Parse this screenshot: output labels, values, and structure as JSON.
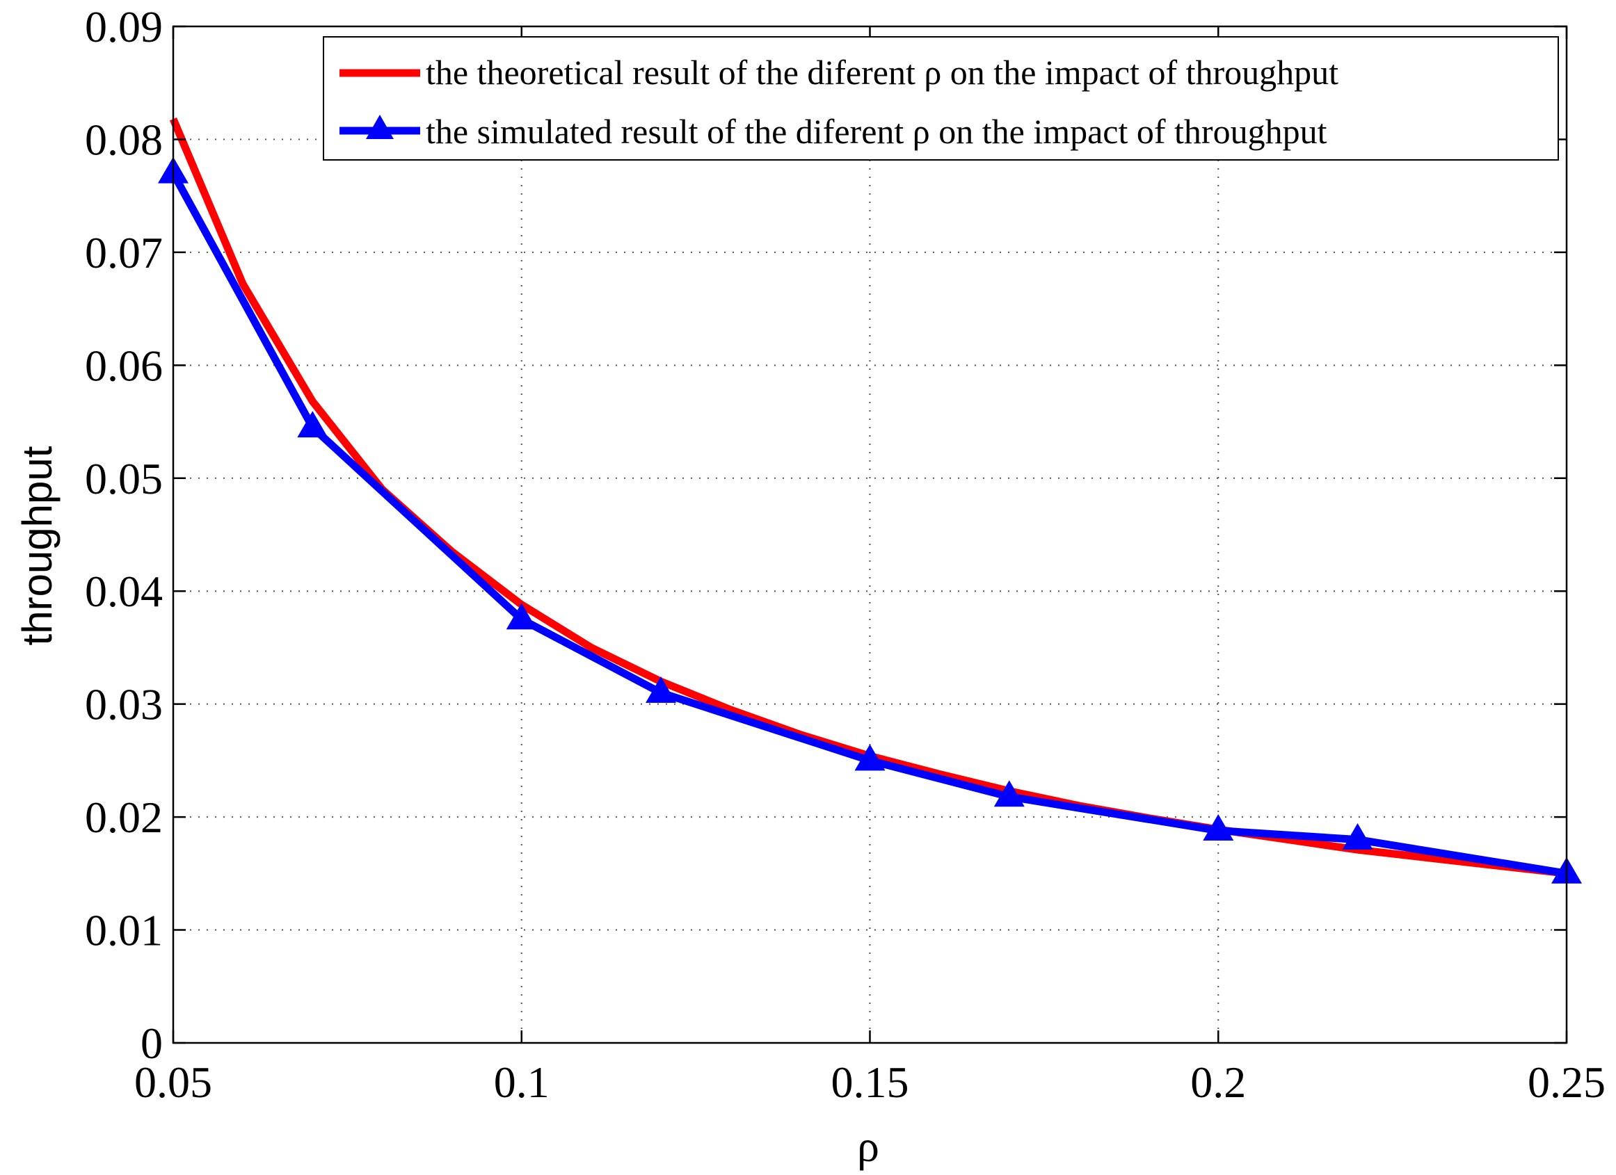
{
  "chart_data": {
    "type": "line",
    "title": "",
    "xlabel": "ρ",
    "ylabel": "throughput",
    "xlim": [
      0.05,
      0.25
    ],
    "ylim": [
      0,
      0.09
    ],
    "xticks": [
      0.05,
      0.1,
      0.15,
      0.2,
      0.25
    ],
    "xtick_labels": [
      "0.05",
      "0.1",
      "0.15",
      "0.2",
      "0.25"
    ],
    "yticks": [
      0,
      0.01,
      0.02,
      0.03,
      0.04,
      0.05,
      0.06,
      0.07,
      0.08,
      0.09
    ],
    "ytick_labels": [
      "0",
      "0.01",
      "0.02",
      "0.03",
      "0.04",
      "0.05",
      "0.06",
      "0.07",
      "0.08",
      "0.09"
    ],
    "grid": true,
    "legend_position": "top-right",
    "series": [
      {
        "name": "the theoretical result of the diferent ρ on the impact of throughput",
        "color": "#ff0000",
        "marker": "none",
        "x": [
          0.05,
          0.06,
          0.07,
          0.08,
          0.09,
          0.1,
          0.11,
          0.12,
          0.13,
          0.14,
          0.15,
          0.16,
          0.17,
          0.18,
          0.19,
          0.2,
          0.21,
          0.22,
          0.23,
          0.24,
          0.25
        ],
        "y": [
          0.0818,
          0.0672,
          0.0568,
          0.049,
          0.0435,
          0.0388,
          0.035,
          0.032,
          0.0295,
          0.0273,
          0.0254,
          0.0238,
          0.0223,
          0.021,
          0.0199,
          0.0189,
          0.018,
          0.0171,
          0.0164,
          0.0157,
          0.015
        ]
      },
      {
        "name": "the simulated result of the diferent ρ on the impact of throughput",
        "color": "#0000ff",
        "marker": "triangle-up",
        "x": [
          0.05,
          0.07,
          0.1,
          0.12,
          0.15,
          0.17,
          0.2,
          0.22,
          0.25
        ],
        "y": [
          0.077,
          0.0545,
          0.0375,
          0.031,
          0.025,
          0.0218,
          0.0188,
          0.018,
          0.015
        ]
      }
    ]
  }
}
